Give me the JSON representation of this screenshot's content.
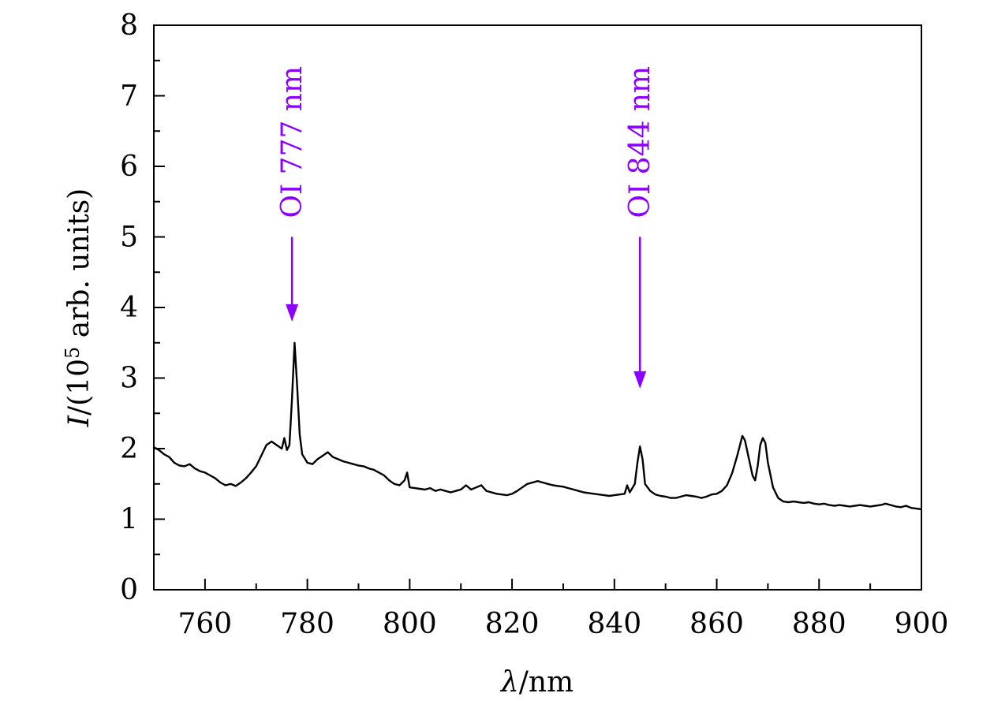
{
  "chart_data": {
    "type": "line",
    "title": "",
    "xlabel": {
      "symbol": "λ",
      "rest": "/nm"
    },
    "ylabel": {
      "symbol": "I",
      "prefix": "/(10",
      "exponent": "5",
      "suffix": " arb. units)"
    },
    "xlim": [
      750,
      900
    ],
    "ylim": [
      0,
      8
    ],
    "x_ticks": [
      760,
      780,
      800,
      820,
      840,
      860,
      880,
      900
    ],
    "y_ticks": [
      0,
      1,
      2,
      3,
      4,
      5,
      6,
      7,
      8
    ],
    "grid": false,
    "legend": "none",
    "series": [
      {
        "color": "#000000",
        "points": [
          [
            750,
            2.02
          ],
          [
            751,
            1.98
          ],
          [
            752,
            1.92
          ],
          [
            753,
            1.88
          ],
          [
            754,
            1.8
          ],
          [
            755,
            1.76
          ],
          [
            756,
            1.75
          ],
          [
            757,
            1.78
          ],
          [
            758,
            1.72
          ],
          [
            759,
            1.68
          ],
          [
            760,
            1.66
          ],
          [
            761,
            1.62
          ],
          [
            762,
            1.58
          ],
          [
            763,
            1.52
          ],
          [
            764,
            1.48
          ],
          [
            765,
            1.5
          ],
          [
            766,
            1.47
          ],
          [
            767,
            1.52
          ],
          [
            768,
            1.58
          ],
          [
            769,
            1.66
          ],
          [
            770,
            1.75
          ],
          [
            771,
            1.9
          ],
          [
            772,
            2.05
          ],
          [
            773,
            2.1
          ],
          [
            774,
            2.05
          ],
          [
            775,
            2.0
          ],
          [
            775.5,
            2.15
          ],
          [
            776,
            1.98
          ],
          [
            776.5,
            2.05
          ],
          [
            777,
            2.7
          ],
          [
            777.5,
            3.5
          ],
          [
            778,
            2.9
          ],
          [
            778.5,
            2.2
          ],
          [
            779,
            1.92
          ],
          [
            780,
            1.8
          ],
          [
            781,
            1.78
          ],
          [
            782,
            1.85
          ],
          [
            783,
            1.9
          ],
          [
            784,
            1.95
          ],
          [
            785,
            1.88
          ],
          [
            786,
            1.85
          ],
          [
            787,
            1.82
          ],
          [
            788,
            1.8
          ],
          [
            789,
            1.78
          ],
          [
            790,
            1.76
          ],
          [
            791,
            1.75
          ],
          [
            792,
            1.72
          ],
          [
            793,
            1.7
          ],
          [
            794,
            1.66
          ],
          [
            795,
            1.62
          ],
          [
            796,
            1.55
          ],
          [
            797,
            1.5
          ],
          [
            798,
            1.48
          ],
          [
            799,
            1.55
          ],
          [
            799.5,
            1.66
          ],
          [
            800,
            1.45
          ],
          [
            801,
            1.44
          ],
          [
            802,
            1.43
          ],
          [
            803,
            1.42
          ],
          [
            804,
            1.44
          ],
          [
            805,
            1.4
          ],
          [
            806,
            1.42
          ],
          [
            807,
            1.4
          ],
          [
            808,
            1.38
          ],
          [
            809,
            1.4
          ],
          [
            810,
            1.42
          ],
          [
            811,
            1.48
          ],
          [
            812,
            1.42
          ],
          [
            813,
            1.45
          ],
          [
            814,
            1.48
          ],
          [
            815,
            1.4
          ],
          [
            816,
            1.38
          ],
          [
            817,
            1.36
          ],
          [
            818,
            1.35
          ],
          [
            819,
            1.34
          ],
          [
            820,
            1.36
          ],
          [
            821,
            1.4
          ],
          [
            822,
            1.45
          ],
          [
            823,
            1.5
          ],
          [
            824,
            1.52
          ],
          [
            825,
            1.54
          ],
          [
            826,
            1.52
          ],
          [
            827,
            1.5
          ],
          [
            828,
            1.48
          ],
          [
            829,
            1.47
          ],
          [
            830,
            1.46
          ],
          [
            831,
            1.44
          ],
          [
            832,
            1.42
          ],
          [
            833,
            1.4
          ],
          [
            834,
            1.38
          ],
          [
            835,
            1.37
          ],
          [
            836,
            1.36
          ],
          [
            837,
            1.35
          ],
          [
            838,
            1.34
          ],
          [
            839,
            1.33
          ],
          [
            840,
            1.34
          ],
          [
            841,
            1.35
          ],
          [
            842,
            1.36
          ],
          [
            842.5,
            1.48
          ],
          [
            843,
            1.38
          ],
          [
            844,
            1.5
          ],
          [
            844.5,
            1.8
          ],
          [
            845,
            2.03
          ],
          [
            845.5,
            1.85
          ],
          [
            846,
            1.5
          ],
          [
            847,
            1.4
          ],
          [
            848,
            1.35
          ],
          [
            849,
            1.33
          ],
          [
            850,
            1.32
          ],
          [
            851,
            1.3
          ],
          [
            852,
            1.3
          ],
          [
            853,
            1.32
          ],
          [
            854,
            1.34
          ],
          [
            855,
            1.33
          ],
          [
            856,
            1.32
          ],
          [
            857,
            1.3
          ],
          [
            858,
            1.32
          ],
          [
            859,
            1.35
          ],
          [
            860,
            1.36
          ],
          [
            861,
            1.4
          ],
          [
            862,
            1.48
          ],
          [
            863,
            1.65
          ],
          [
            864,
            1.9
          ],
          [
            865,
            2.18
          ],
          [
            865.5,
            2.12
          ],
          [
            866,
            1.95
          ],
          [
            867,
            1.62
          ],
          [
            867.5,
            1.55
          ],
          [
            868,
            1.75
          ],
          [
            868.5,
            2.05
          ],
          [
            869,
            2.15
          ],
          [
            869.5,
            2.08
          ],
          [
            870,
            1.8
          ],
          [
            871,
            1.45
          ],
          [
            872,
            1.3
          ],
          [
            873,
            1.25
          ],
          [
            874,
            1.24
          ],
          [
            875,
            1.25
          ],
          [
            876,
            1.24
          ],
          [
            877,
            1.23
          ],
          [
            878,
            1.24
          ],
          [
            879,
            1.22
          ],
          [
            880,
            1.21
          ],
          [
            881,
            1.22
          ],
          [
            882,
            1.2
          ],
          [
            883,
            1.19
          ],
          [
            884,
            1.2
          ],
          [
            885,
            1.19
          ],
          [
            886,
            1.18
          ],
          [
            887,
            1.19
          ],
          [
            888,
            1.2
          ],
          [
            889,
            1.19
          ],
          [
            890,
            1.18
          ],
          [
            891,
            1.19
          ],
          [
            892,
            1.2
          ],
          [
            893,
            1.22
          ],
          [
            894,
            1.2
          ],
          [
            895,
            1.18
          ],
          [
            896,
            1.17
          ],
          [
            897,
            1.19
          ],
          [
            898,
            1.16
          ],
          [
            899,
            1.15
          ],
          [
            900,
            1.14
          ]
        ]
      }
    ],
    "annotations": [
      {
        "text": "OI 777 nm",
        "x": 777,
        "arrow_tip_y": 3.8,
        "arrow_tail_y": 5.0,
        "color": "#8B00FF"
      },
      {
        "text": "OI 844 nm",
        "x": 845,
        "arrow_tip_y": 2.85,
        "arrow_tail_y": 5.0,
        "color": "#8B00FF"
      }
    ]
  }
}
